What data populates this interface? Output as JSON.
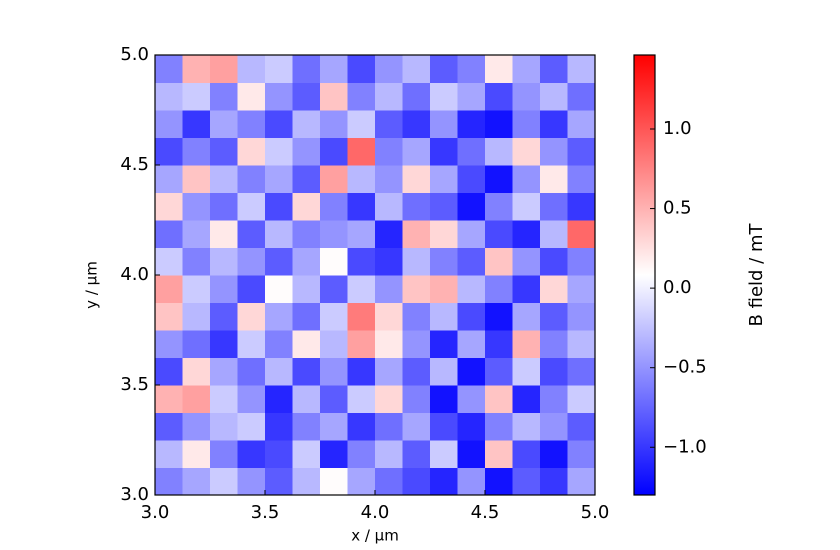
{
  "chart_data": {
    "type": "heatmap",
    "xlabel": "x / µm",
    "ylabel": "y / µm",
    "colorbar_label": "B field / mT",
    "xlim": [
      3.0,
      5.0
    ],
    "ylim": [
      3.0,
      5.0
    ],
    "clim": [
      -1.3,
      1.465
    ],
    "colormap": [
      "#0000ff",
      "#ffffff",
      "#ff0000"
    ],
    "xticks": [
      {
        "value": 3.0,
        "label": "3.0"
      },
      {
        "value": 3.5,
        "label": "3.5"
      },
      {
        "value": 4.0,
        "label": "4.0"
      },
      {
        "value": 4.5,
        "label": "4.5"
      },
      {
        "value": 5.0,
        "label": "5.0"
      }
    ],
    "yticks": [
      {
        "value": 3.0,
        "label": "3.0"
      },
      {
        "value": 3.5,
        "label": "3.5"
      },
      {
        "value": 4.0,
        "label": "4.0"
      },
      {
        "value": 4.5,
        "label": "4.5"
      },
      {
        "value": 5.0,
        "label": "5.0"
      }
    ],
    "cticks": [
      {
        "value": -1.0,
        "label": "−1.0"
      },
      {
        "value": -0.5,
        "label": "−0.5"
      },
      {
        "value": 0.0,
        "label": "0.0"
      },
      {
        "value": 0.5,
        "label": "0.5"
      },
      {
        "value": 1.0,
        "label": "1.0"
      }
    ],
    "z": [
      [
        -0.6,
        -0.4,
        -0.2,
        -0.5,
        -0.8,
        -0.3,
        0.1,
        -0.4,
        -0.7,
        -0.9,
        -1.1,
        -0.5,
        -1.2,
        -0.8,
        -1.0,
        -0.4
      ],
      [
        -0.3,
        0.2,
        -0.6,
        -1.0,
        -0.9,
        -0.2,
        -1.1,
        -0.6,
        -0.3,
        -0.8,
        -0.2,
        -1.2,
        0.4,
        -0.9,
        -1.2,
        -0.6
      ],
      [
        -0.8,
        -0.5,
        -0.3,
        -0.2,
        -1.0,
        -0.6,
        -0.4,
        -1.0,
        -0.7,
        -0.4,
        -0.9,
        -1.1,
        -0.6,
        -0.3,
        -0.5,
        -0.8
      ],
      [
        0.5,
        0.6,
        -0.2,
        -0.5,
        -1.1,
        -0.3,
        -0.8,
        -0.2,
        0.3,
        -0.6,
        -1.2,
        -0.5,
        0.4,
        -1.1,
        -0.6,
        -0.2
      ],
      [
        -0.9,
        0.3,
        -0.4,
        -0.7,
        -0.3,
        -0.9,
        -0.5,
        -1.0,
        -0.4,
        -0.8,
        -0.3,
        -1.2,
        -0.8,
        -0.2,
        -0.9,
        -0.7
      ],
      [
        -0.5,
        -0.7,
        -1.0,
        -0.2,
        -0.6,
        0.2,
        -0.3,
        0.6,
        0.2,
        -0.5,
        -1.1,
        -0.4,
        -1.0,
        0.5,
        -0.6,
        -0.3
      ],
      [
        0.4,
        -0.3,
        -0.8,
        0.3,
        -0.4,
        -0.7,
        -0.2,
        0.8,
        0.3,
        -0.6,
        -0.3,
        -0.9,
        -1.2,
        -0.4,
        -0.8,
        -0.5
      ],
      [
        0.6,
        -0.2,
        -0.5,
        -0.9,
        0.1,
        -0.3,
        -0.8,
        -0.2,
        -0.5,
        0.4,
        0.5,
        -0.3,
        -0.6,
        -1.0,
        0.3,
        -0.4
      ],
      [
        -0.2,
        -0.6,
        -0.3,
        -0.5,
        -0.8,
        -0.4,
        0.1,
        -0.9,
        -1.0,
        -0.3,
        -0.6,
        -0.8,
        0.4,
        -0.5,
        -0.9,
        -0.6
      ],
      [
        -0.7,
        -0.4,
        0.2,
        -0.8,
        -0.3,
        -0.6,
        -0.5,
        -0.4,
        -1.1,
        0.5,
        0.3,
        -0.4,
        -0.9,
        -1.1,
        -0.3,
        0.9
      ],
      [
        0.3,
        -0.5,
        -0.7,
        -0.2,
        -0.9,
        0.3,
        -0.6,
        -1.0,
        -0.3,
        -0.7,
        -0.8,
        -1.2,
        -0.6,
        -0.2,
        -0.7,
        -1.0
      ],
      [
        -0.4,
        0.4,
        -0.3,
        -0.6,
        -0.4,
        -0.8,
        0.6,
        -0.3,
        -0.5,
        0.3,
        -0.4,
        -0.9,
        -1.2,
        -0.5,
        0.2,
        -0.6
      ],
      [
        -0.9,
        -0.6,
        -0.8,
        0.3,
        -0.2,
        -0.5,
        -0.9,
        0.9,
        -0.6,
        -0.4,
        -1.0,
        -0.7,
        -0.3,
        0.3,
        -0.5,
        -0.8
      ],
      [
        -0.5,
        -1.0,
        -0.4,
        -0.6,
        -0.9,
        -0.3,
        -0.5,
        -0.2,
        -0.8,
        -1.0,
        -0.5,
        -1.1,
        -1.2,
        -0.6,
        -1.0,
        -0.4
      ],
      [
        -0.3,
        -0.2,
        -0.6,
        0.2,
        -0.5,
        -0.8,
        0.4,
        -0.6,
        -0.3,
        -0.7,
        -0.2,
        -0.4,
        -0.9,
        -0.5,
        -0.3,
        -0.7
      ],
      [
        -0.6,
        0.5,
        0.6,
        -0.3,
        -0.2,
        -0.7,
        -0.4,
        -0.9,
        -0.5,
        -0.3,
        -0.8,
        -0.6,
        0.2,
        -0.4,
        -0.8,
        -0.3
      ]
    ]
  }
}
